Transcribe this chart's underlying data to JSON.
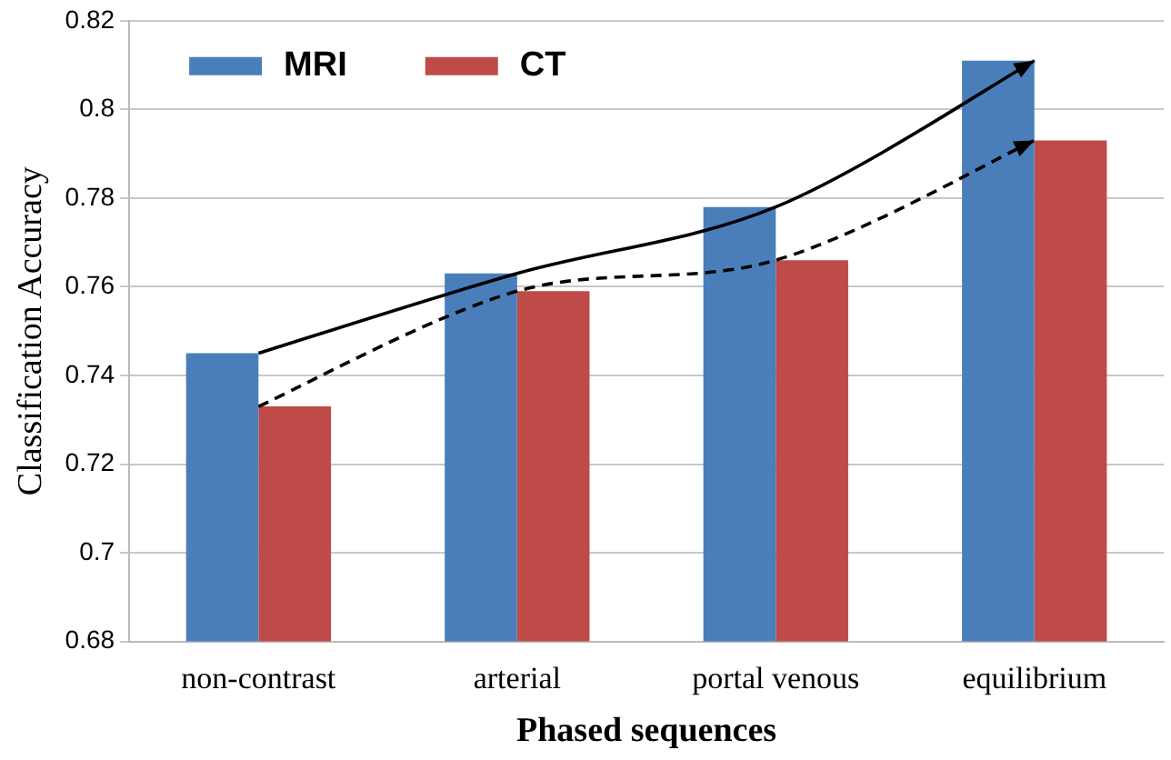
{
  "chart_data": {
    "type": "bar",
    "xlabel": "Phased sequences",
    "ylabel": "Classification Accuracy",
    "categories": [
      "non-contrast",
      "arterial",
      "portal venous",
      "equilibrium"
    ],
    "series": [
      {
        "name": "MRI",
        "color": "#4a7ebb",
        "values": [
          0.745,
          0.763,
          0.778,
          0.811
        ]
      },
      {
        "name": "CT",
        "color": "#be4b48",
        "values": [
          0.733,
          0.759,
          0.766,
          0.793
        ]
      }
    ],
    "ylim": [
      0.68,
      0.82
    ],
    "yticks": [
      0.68,
      0.7,
      0.72,
      0.74,
      0.76,
      0.78,
      0.8,
      0.82
    ],
    "grid": "y",
    "legend": "top left"
  }
}
